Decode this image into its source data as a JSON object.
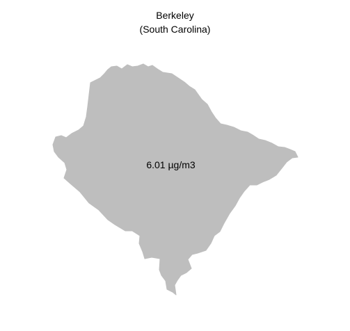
{
  "map": {
    "title_line1": "Berkeley",
    "title_line2": "(South Carolina)",
    "region_value_label": "6.01 µg/m3",
    "fill_color": "#bebebe",
    "background_color": "#ffffff"
  }
}
